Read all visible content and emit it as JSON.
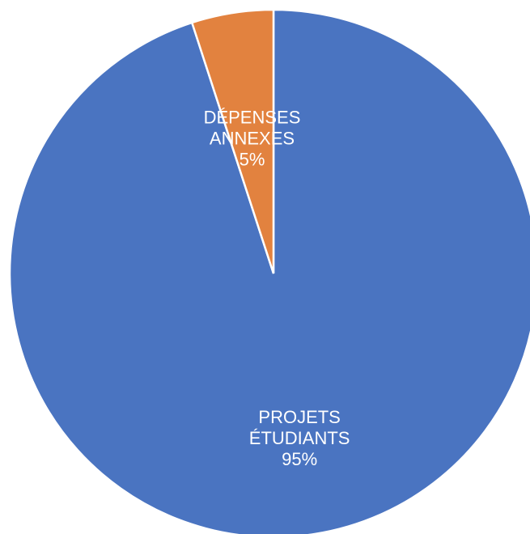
{
  "chart_data": {
    "type": "pie",
    "slices": [
      {
        "category": "PROJETS ÉTUDIANTS",
        "label_lines": [
          "PROJETS",
          "ÉTUDIANTS"
        ],
        "value": 95,
        "percent_label": "95%",
        "color": "#4a74c1"
      },
      {
        "category": "DÉPENSES ANNEXES",
        "label_lines": [
          "DÉPENSES",
          "ANNEXES"
        ],
        "value": 5,
        "percent_label": "5%",
        "color": "#e2823f"
      }
    ],
    "start_angle_deg": 0,
    "direction": "clockwise",
    "legend": "none",
    "title": ""
  }
}
